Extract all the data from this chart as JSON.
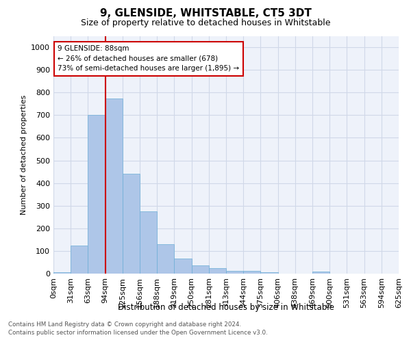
{
  "title": "9, GLENSIDE, WHITSTABLE, CT5 3DT",
  "subtitle": "Size of property relative to detached houses in Whitstable",
  "xlabel": "Distribution of detached houses by size in Whitstable",
  "ylabel": "Number of detached properties",
  "bar_labels": [
    "0sqm",
    "31sqm",
    "63sqm",
    "94sqm",
    "125sqm",
    "156sqm",
    "188sqm",
    "219sqm",
    "250sqm",
    "281sqm",
    "313sqm",
    "344sqm",
    "375sqm",
    "406sqm",
    "438sqm",
    "469sqm",
    "500sqm",
    "531sqm",
    "563sqm",
    "594sqm",
    "625sqm"
  ],
  "bar_heights": [
    5,
    125,
    700,
    775,
    440,
    275,
    130,
    65,
    35,
    25,
    12,
    12,
    7,
    0,
    0,
    8,
    0,
    0,
    0,
    0
  ],
  "bar_color": "#aec6e8",
  "bar_edge_color": "#6baed6",
  "grid_color": "#d0d8e8",
  "vline_x_idx": 3,
  "vline_color": "#cc0000",
  "annotation_line1": "9 GLENSIDE: 88sqm",
  "annotation_line2": "← 26% of detached houses are smaller (678)",
  "annotation_line3": "73% of semi-detached houses are larger (1,895) →",
  "annotation_box_facecolor": "#ffffff",
  "annotation_box_edgecolor": "#cc0000",
  "ylim": [
    0,
    1050
  ],
  "yticks": [
    0,
    100,
    200,
    300,
    400,
    500,
    600,
    700,
    800,
    900,
    1000
  ],
  "footer_line1": "Contains HM Land Registry data © Crown copyright and database right 2024.",
  "footer_line2": "Contains public sector information licensed under the Open Government Licence v3.0.",
  "bg_color": "#ffffff",
  "plot_bg_color": "#eef2fa"
}
